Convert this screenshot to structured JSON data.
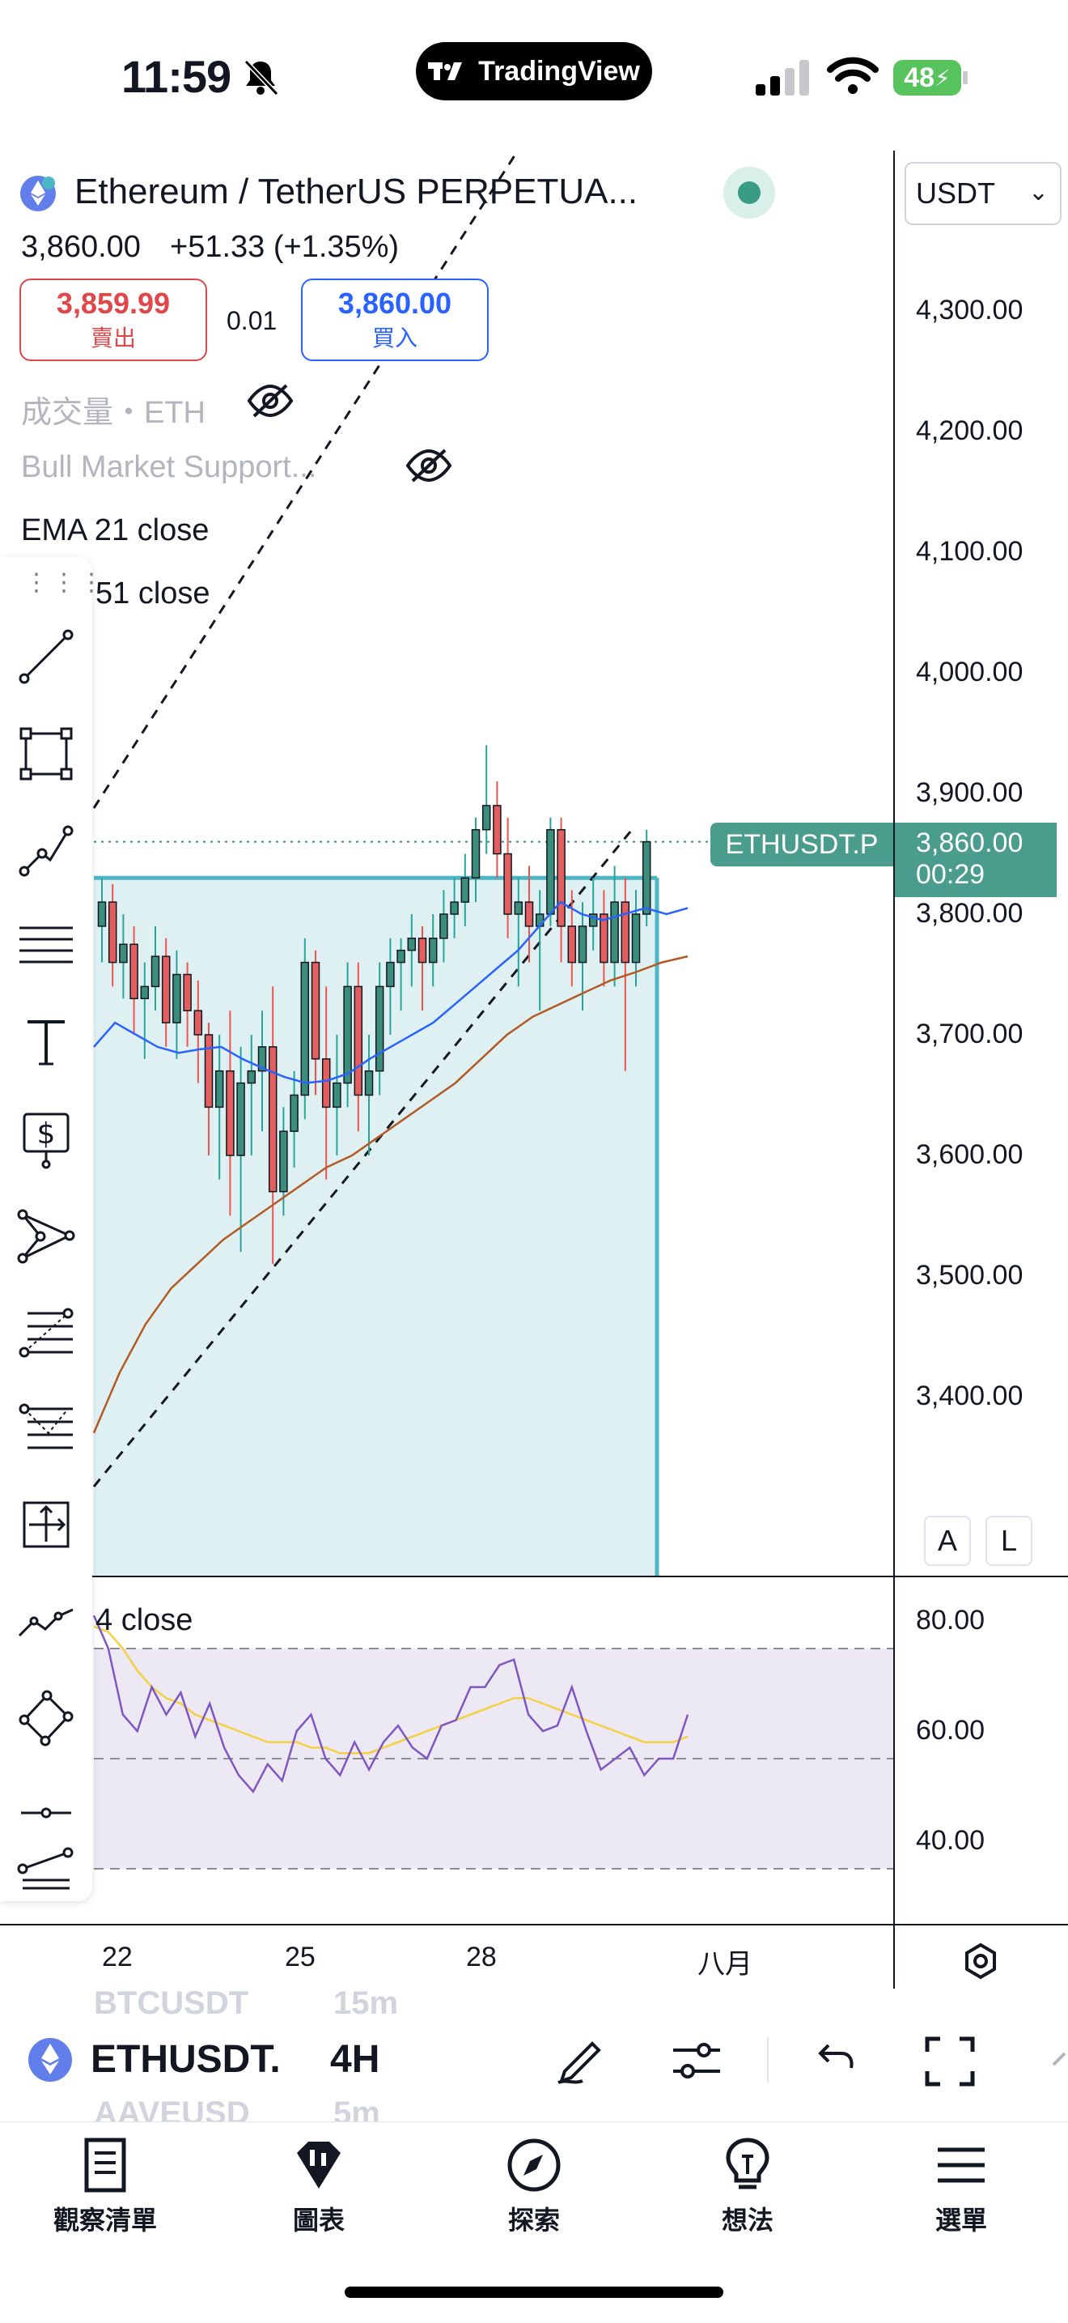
{
  "status_bar": {
    "time": "11:59",
    "app_pill": "TradingView",
    "battery": "48"
  },
  "header": {
    "symbol_title": "Ethereum / TetherUS PERPETUA...",
    "quote_currency": "USDT",
    "last_price": "3,860.00",
    "change": "+51.33 (+1.35%)",
    "sell_price": "3,859.99",
    "sell_label": "賣出",
    "spread": "0.01",
    "buy_price": "3,860.00",
    "buy_label": "買入"
  },
  "indicators": {
    "volume": "成交量・ETH",
    "bull_market": "Bull Market Support...",
    "ema21": "EMA 21 close",
    "ema51": "51 close",
    "rsi": "4 close"
  },
  "price_axis": {
    "ticks": [
      "4,300.00",
      "4,200.00",
      "4,100.00",
      "4,000.00",
      "3,900.00",
      "3,800.00",
      "3,700.00",
      "3,600.00",
      "3,500.00",
      "3,400.00"
    ],
    "current_label": "ETHUSDT.P",
    "current_price": "3,860.00",
    "countdown": "00:29",
    "scale_a": "A",
    "scale_l": "L"
  },
  "rsi_axis": {
    "ticks": [
      "80.00",
      "60.00",
      "40.00"
    ]
  },
  "time_axis": {
    "ticks": [
      "22",
      "25",
      "28",
      "八月"
    ]
  },
  "bottom_bar": {
    "symbol": "ETHUSDT.",
    "interval": "4H",
    "ghost_symbol_top": "BTCUSDT",
    "ghost_interval_top": "15m",
    "ghost_symbol_bottom": "AAVEUSD",
    "ghost_interval_bottom": "5m"
  },
  "tabs": [
    {
      "label": "觀察清單",
      "icon": "watchlist-icon"
    },
    {
      "label": "圖表",
      "icon": "chart-icon"
    },
    {
      "label": "探索",
      "icon": "explore-icon"
    },
    {
      "label": "想法",
      "icon": "ideas-icon"
    },
    {
      "label": "選單",
      "icon": "menu-icon"
    }
  ],
  "colors": {
    "up": "#26a69a",
    "down": "#ef5350",
    "candle_up_fill": "#3b8e7c",
    "candle_down_fill": "#e35f5f",
    "ema21": "#2962ff",
    "ema51": "#b35a24",
    "rsi": "#7e57c2",
    "rsi_ma": "#f5d042",
    "rect_fill": "#dff0f3",
    "rect_border": "#4db6c4",
    "current_price_bg": "#4a9c8c"
  }
}
